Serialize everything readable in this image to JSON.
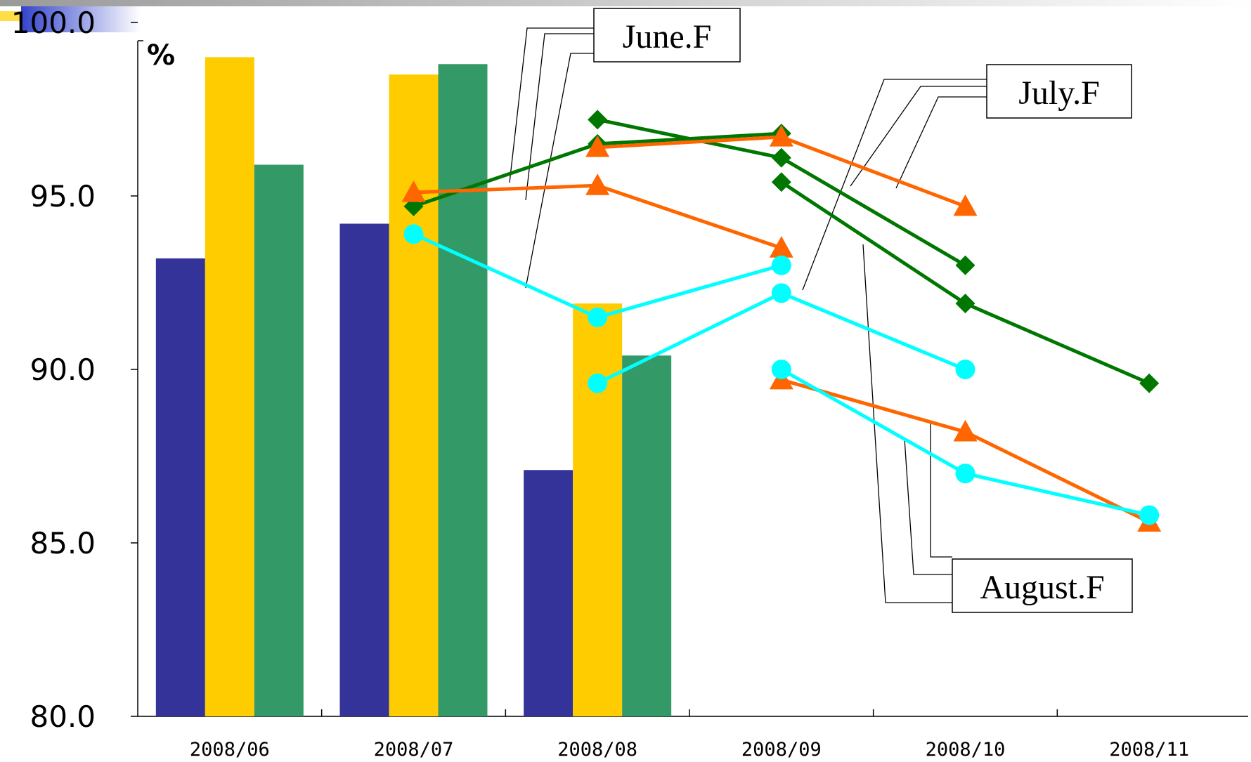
{
  "chart_data": {
    "type": "bar",
    "unit_label": "%",
    "categories": [
      "2008/06",
      "2008/07",
      "2008/08",
      "2008/09",
      "2008/10",
      "2008/11"
    ],
    "ylim": [
      80,
      100
    ],
    "yticks": [
      "80.0",
      "85.0",
      "90.0",
      "95.0",
      "100.0"
    ],
    "grid": false,
    "colors": {
      "bar_navy": "#333399",
      "bar_gold": "#ffcc00",
      "bar_green": "#339966",
      "diamond_line": "#007700",
      "triangle_line": "#ff6600",
      "circle_line": "#00ffff"
    },
    "bar_series": [
      {
        "color": "bar_navy",
        "values": [
          93.2,
          94.2,
          87.1,
          null,
          null,
          null
        ]
      },
      {
        "color": "bar_gold",
        "values": [
          99.0,
          98.5,
          91.9,
          null,
          null,
          null
        ]
      },
      {
        "color": "bar_green",
        "values": [
          95.9,
          98.8,
          90.4,
          null,
          null,
          null
        ]
      }
    ],
    "line_series": [
      {
        "marker": "diamond",
        "color": "diamond_line",
        "values": [
          null,
          94.7,
          96.5,
          96.8,
          null,
          null
        ]
      },
      {
        "marker": "triangle",
        "color": "triangle_line",
        "values": [
          null,
          95.1,
          95.3,
          93.5,
          null,
          null
        ]
      },
      {
        "marker": "circle",
        "color": "circle_line",
        "values": [
          null,
          93.9,
          91.5,
          93.0,
          null,
          null
        ]
      },
      {
        "marker": "diamond",
        "color": "diamond_line",
        "values": [
          null,
          null,
          97.2,
          96.1,
          93.0,
          null
        ]
      },
      {
        "marker": "triangle",
        "color": "triangle_line",
        "values": [
          null,
          null,
          96.4,
          96.7,
          94.7,
          null
        ]
      },
      {
        "marker": "circle",
        "color": "circle_line",
        "values": [
          null,
          null,
          89.6,
          92.2,
          90.0,
          null
        ]
      },
      {
        "marker": "diamond",
        "color": "diamond_line",
        "values": [
          null,
          null,
          null,
          95.4,
          91.9,
          89.6
        ]
      },
      {
        "marker": "triangle",
        "color": "triangle_line",
        "values": [
          null,
          null,
          null,
          89.7,
          88.2,
          85.6
        ]
      },
      {
        "marker": "circle",
        "color": "circle_line",
        "values": [
          null,
          null,
          null,
          90.0,
          87.0,
          85.8
        ]
      }
    ],
    "annotations": [
      {
        "label": "June.F"
      },
      {
        "label": "July.F"
      },
      {
        "label": "August.F"
      }
    ]
  }
}
